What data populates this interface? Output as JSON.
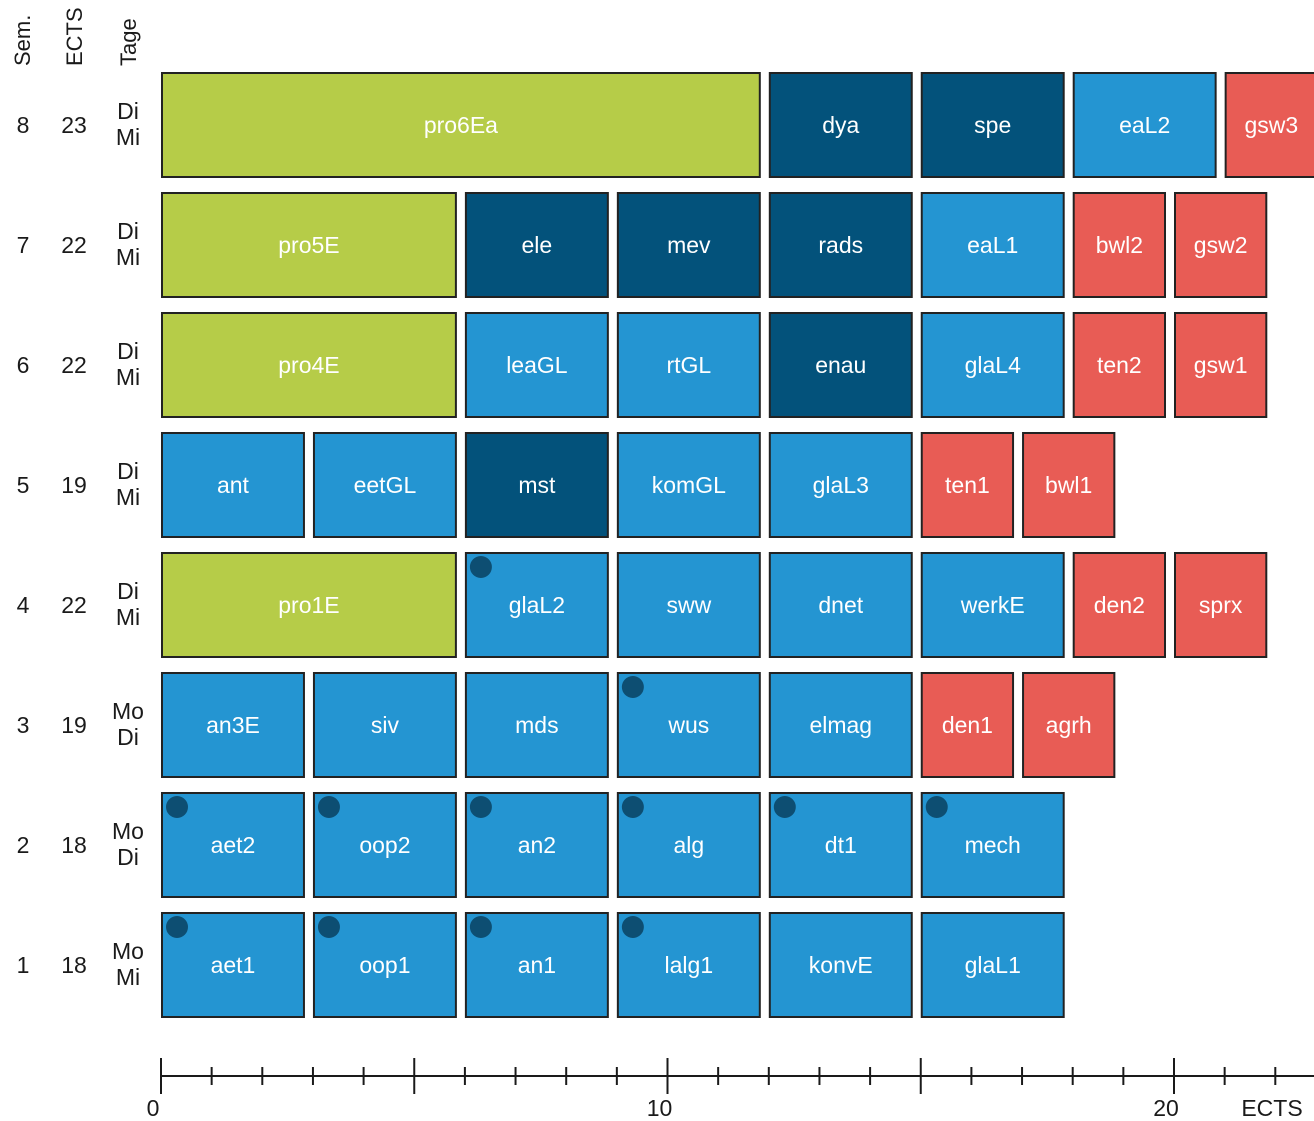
{
  "headers": {
    "semester": "Sem.",
    "ects": "ECTS",
    "days": "Tage"
  },
  "colors": {
    "project": "#b6cc48",
    "core": "#2495d2",
    "advanced": "#03527b",
    "elective": "#e85c55",
    "marker": "#0d4e72",
    "border": "#222222",
    "text_light": "#ffffff"
  },
  "semesters": [
    {
      "sem": "8",
      "ects": "23",
      "days": [
        "Di",
        "Mi"
      ],
      "modules": [
        {
          "name": "pro6Ea",
          "ects": 12,
          "kind": "project"
        },
        {
          "name": "dya",
          "ects": 3,
          "kind": "advanced"
        },
        {
          "name": "spe",
          "ects": 3,
          "kind": "advanced"
        },
        {
          "name": "eaL2",
          "ects": 3,
          "kind": "core"
        },
        {
          "name": "gsw3",
          "ects": 2,
          "kind": "elective"
        }
      ]
    },
    {
      "sem": "7",
      "ects": "22",
      "days": [
        "Di",
        "Mi"
      ],
      "modules": [
        {
          "name": "pro5E",
          "ects": 6,
          "kind": "project"
        },
        {
          "name": "ele",
          "ects": 3,
          "kind": "advanced"
        },
        {
          "name": "mev",
          "ects": 3,
          "kind": "advanced"
        },
        {
          "name": "rads",
          "ects": 3,
          "kind": "advanced"
        },
        {
          "name": "eaL1",
          "ects": 3,
          "kind": "core"
        },
        {
          "name": "bwl2",
          "ects": 2,
          "kind": "elective"
        },
        {
          "name": "gsw2",
          "ects": 2,
          "kind": "elective"
        }
      ]
    },
    {
      "sem": "6",
      "ects": "22",
      "days": [
        "Di",
        "Mi"
      ],
      "modules": [
        {
          "name": "pro4E",
          "ects": 6,
          "kind": "project"
        },
        {
          "name": "leaGL",
          "ects": 3,
          "kind": "core"
        },
        {
          "name": "rtGL",
          "ects": 3,
          "kind": "core"
        },
        {
          "name": "enau",
          "ects": 3,
          "kind": "advanced"
        },
        {
          "name": "glaL4",
          "ects": 3,
          "kind": "core"
        },
        {
          "name": "ten2",
          "ects": 2,
          "kind": "elective"
        },
        {
          "name": "gsw1",
          "ects": 2,
          "kind": "elective"
        }
      ]
    },
    {
      "sem": "5",
      "ects": "19",
      "days": [
        "Di",
        "Mi"
      ],
      "modules": [
        {
          "name": "ant",
          "ects": 3,
          "kind": "core"
        },
        {
          "name": "eetGL",
          "ects": 3,
          "kind": "core"
        },
        {
          "name": "mst",
          "ects": 3,
          "kind": "advanced"
        },
        {
          "name": "komGL",
          "ects": 3,
          "kind": "core"
        },
        {
          "name": "glaL3",
          "ects": 3,
          "kind": "core"
        },
        {
          "name": "ten1",
          "ects": 2,
          "kind": "elective"
        },
        {
          "name": "bwl1",
          "ects": 2,
          "kind": "elective"
        }
      ]
    },
    {
      "sem": "4",
      "ects": "22",
      "days": [
        "Di",
        "Mi"
      ],
      "modules": [
        {
          "name": "pro1E",
          "ects": 6,
          "kind": "project"
        },
        {
          "name": "glaL2",
          "ects": 3,
          "kind": "core",
          "marker": true
        },
        {
          "name": "sww",
          "ects": 3,
          "kind": "core"
        },
        {
          "name": "dnet",
          "ects": 3,
          "kind": "core"
        },
        {
          "name": "werkE",
          "ects": 3,
          "kind": "core"
        },
        {
          "name": "den2",
          "ects": 2,
          "kind": "elective"
        },
        {
          "name": "sprx",
          "ects": 2,
          "kind": "elective"
        }
      ]
    },
    {
      "sem": "3",
      "ects": "19",
      "days": [
        "Mo",
        "Di"
      ],
      "modules": [
        {
          "name": "an3E",
          "ects": 3,
          "kind": "core"
        },
        {
          "name": "siv",
          "ects": 3,
          "kind": "core"
        },
        {
          "name": "mds",
          "ects": 3,
          "kind": "core"
        },
        {
          "name": "wus",
          "ects": 3,
          "kind": "core",
          "marker": true
        },
        {
          "name": "elmag",
          "ects": 3,
          "kind": "core"
        },
        {
          "name": "den1",
          "ects": 2,
          "kind": "elective"
        },
        {
          "name": "agrh",
          "ects": 2,
          "kind": "elective"
        }
      ]
    },
    {
      "sem": "2",
      "ects": "18",
      "days": [
        "Mo",
        "Di"
      ],
      "modules": [
        {
          "name": "aet2",
          "ects": 3,
          "kind": "core",
          "marker": true
        },
        {
          "name": "oop2",
          "ects": 3,
          "kind": "core",
          "marker": true
        },
        {
          "name": "an2",
          "ects": 3,
          "kind": "core",
          "marker": true
        },
        {
          "name": "alg",
          "ects": 3,
          "kind": "core",
          "marker": true
        },
        {
          "name": "dt1",
          "ects": 3,
          "kind": "core",
          "marker": true
        },
        {
          "name": "mech",
          "ects": 3,
          "kind": "core",
          "marker": true
        }
      ]
    },
    {
      "sem": "1",
      "ects": "18",
      "days": [
        "Mo",
        "Mi"
      ],
      "modules": [
        {
          "name": "aet1",
          "ects": 3,
          "kind": "core",
          "marker": true
        },
        {
          "name": "oop1",
          "ects": 3,
          "kind": "core",
          "marker": true
        },
        {
          "name": "an1",
          "ects": 3,
          "kind": "core",
          "marker": true
        },
        {
          "name": "lalg1",
          "ects": 3,
          "kind": "core",
          "marker": true
        },
        {
          "name": "konvE",
          "ects": 3,
          "kind": "core"
        },
        {
          "name": "glaL1",
          "ects": 3,
          "kind": "core"
        }
      ]
    }
  ],
  "axis": {
    "label": "ECTS",
    "min": 0,
    "max": 23,
    "minor_step": 1,
    "major_step": 5,
    "tick_labels": [
      {
        "value": 0,
        "text": "0"
      },
      {
        "value": 10,
        "text": "10"
      },
      {
        "value": 20,
        "text": "20"
      }
    ]
  }
}
